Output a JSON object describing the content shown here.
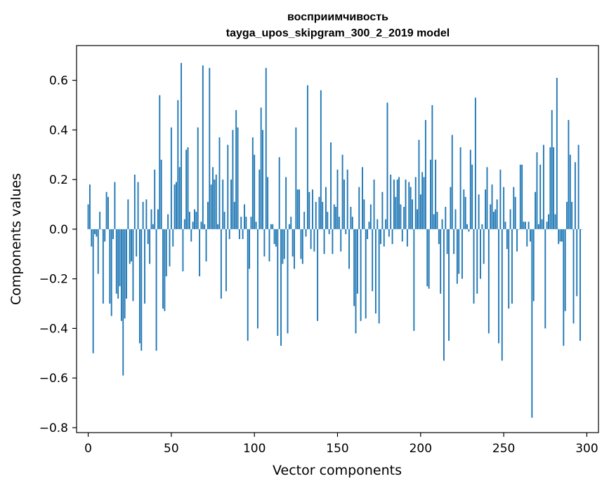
{
  "chart_data": {
    "type": "bar",
    "title": "восприимчивость",
    "subtitle": "tayga_upos_skipgram_300_2_2019 model",
    "xlabel": "Vector components",
    "ylabel": "Components values",
    "xlim": [
      -7,
      307
    ],
    "ylim": [
      -0.82,
      0.74
    ],
    "xticks": [
      0,
      50,
      100,
      150,
      200,
      250,
      300
    ],
    "xtick_labels": [
      "0",
      "50",
      "100",
      "150",
      "200",
      "250",
      "300"
    ],
    "yticks": [
      -0.8,
      -0.6,
      -0.4,
      -0.2,
      0.0,
      0.2,
      0.4,
      0.6
    ],
    "ytick_labels": [
      "−0.8",
      "−0.6",
      "−0.4",
      "−0.2",
      "0.0",
      "0.2",
      "0.4",
      "0.6"
    ],
    "grid": false,
    "bar_color": "#1f77b4",
    "x_start": 0,
    "values": [
      0.1,
      0.18,
      -0.07,
      -0.5,
      -0.02,
      -0.03,
      -0.18,
      0.07,
      0.0,
      -0.3,
      -0.05,
      0.15,
      0.13,
      -0.3,
      -0.35,
      -0.04,
      0.19,
      -0.26,
      -0.28,
      -0.23,
      -0.37,
      -0.59,
      -0.36,
      -0.28,
      0.12,
      -0.14,
      -0.13,
      -0.29,
      0.22,
      -0.11,
      0.19,
      -0.46,
      -0.49,
      0.11,
      -0.3,
      0.12,
      -0.06,
      -0.14,
      0.08,
      0.02,
      0.24,
      -0.49,
      0.08,
      0.54,
      0.28,
      -0.32,
      -0.33,
      -0.19,
      0.06,
      -0.15,
      0.41,
      -0.07,
      0.18,
      0.19,
      0.52,
      0.25,
      0.67,
      -0.17,
      0.04,
      0.32,
      0.33,
      0.07,
      -0.05,
      0.03,
      0.08,
      0.07,
      0.41,
      -0.19,
      0.03,
      0.66,
      0.02,
      -0.13,
      0.11,
      0.65,
      0.18,
      0.25,
      0.2,
      0.22,
      0.02,
      0.37,
      -0.28,
      0.2,
      0.07,
      -0.25,
      0.34,
      -0.04,
      0.2,
      0.4,
      0.11,
      0.48,
      0.41,
      -0.04,
      0.05,
      -0.04,
      0.1,
      0.05,
      -0.45,
      -0.16,
      0.05,
      0.37,
      0.3,
      0.03,
      -0.4,
      0.24,
      0.49,
      0.4,
      -0.11,
      0.65,
      0.21,
      -0.13,
      0.02,
      0.02,
      -0.06,
      -0.07,
      -0.43,
      0.29,
      -0.47,
      -0.14,
      -0.12,
      0.21,
      -0.42,
      0.02,
      0.05,
      -0.11,
      -0.16,
      0.41,
      0.16,
      0.16,
      -0.12,
      -0.14,
      0.07,
      -0.03,
      0.58,
      0.15,
      -0.08,
      0.16,
      -0.09,
      0.11,
      -0.37,
      0.13,
      0.56,
      0.11,
      -0.1,
      0.17,
      0.07,
      -0.02,
      0.35,
      -0.1,
      0.1,
      0.09,
      0.24,
      0.05,
      -0.09,
      0.3,
      0.2,
      -0.02,
      0.24,
      -0.16,
      0.09,
      0.05,
      -0.31,
      -0.42,
      -0.26,
      0.17,
      -0.37,
      0.25,
      0.12,
      -0.36,
      -0.04,
      0.03,
      0.1,
      -0.25,
      0.2,
      -0.34,
      0.04,
      -0.38,
      -0.06,
      0.15,
      -0.07,
      0.04,
      0.51,
      -0.03,
      0.22,
      -0.06,
      0.2,
      0.13,
      0.2,
      0.21,
      0.1,
      -0.05,
      0.09,
      0.2,
      -0.07,
      0.19,
      0.17,
      0.12,
      -0.41,
      0.21,
      0.08,
      0.36,
      0.14,
      0.23,
      0.21,
      0.44,
      -0.23,
      -0.24,
      0.28,
      0.5,
      0.06,
      0.28,
      0.07,
      -0.06,
      -0.26,
      0.04,
      -0.53,
      0.09,
      -0.1,
      -0.45,
      0.17,
      0.38,
      -0.1,
      0.08,
      -0.22,
      -0.18,
      0.33,
      -0.2,
      0.16,
      0.13,
      0.02,
      -0.01,
      0.32,
      0.26,
      -0.3,
      0.53,
      -0.26,
      0.14,
      -0.2,
      0.02,
      -0.14,
      0.16,
      0.25,
      -0.42,
      0.1,
      0.18,
      0.07,
      0.08,
      0.12,
      -0.46,
      0.24,
      -0.53,
      0.17,
      0.03,
      -0.08,
      -0.32,
      0.08,
      -0.3,
      0.17,
      0.13,
      -0.09,
      0.0,
      0.26,
      0.26,
      0.03,
      0.03,
      -0.07,
      0.03,
      -0.05,
      -0.76,
      -0.29,
      0.15,
      0.31,
      0.02,
      0.26,
      0.04,
      0.34,
      -0.4,
      0.03,
      0.06,
      0.33,
      0.48,
      0.33,
      0.06,
      0.61,
      -0.06,
      -0.05,
      -0.05,
      -0.47,
      -0.33,
      0.11,
      0.44,
      0.3,
      0.11,
      -0.38,
      0.27,
      -0.27,
      0.34,
      -0.45,
      0.0
    ]
  }
}
